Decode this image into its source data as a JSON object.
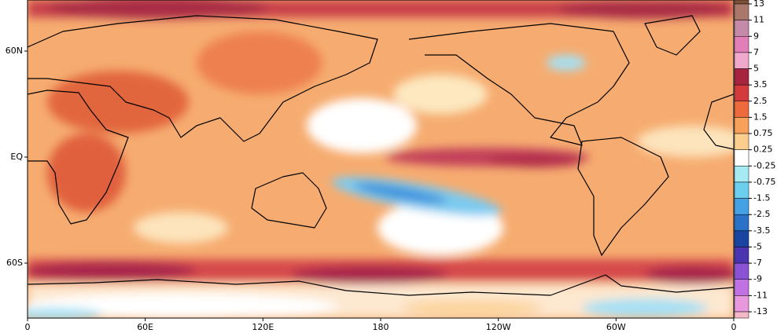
{
  "map": {
    "x_labels": [
      "0",
      "60E",
      "120E",
      "180",
      "120W",
      "60W",
      "0"
    ],
    "y_labels": [
      "60N",
      "EQ",
      "60S"
    ]
  },
  "colorbar": {
    "labels": [
      "13",
      "11",
      "9",
      "7",
      "5",
      "3.5",
      "2.5",
      "1.5",
      "0.75",
      "0.25",
      "-0.25",
      "-0.75",
      "-1.5",
      "-2.5",
      "-3.5",
      "-5",
      "-7",
      "-9",
      "-11",
      "-13"
    ],
    "colors": [
      "#7d5238",
      "#a9786a",
      "#c48aa8",
      "#e27fb8",
      "#f0a8cc",
      "#a6243e",
      "#d23a3c",
      "#ee6a3c",
      "#f6a05a",
      "#fcce8e",
      "#ffffff",
      "#a6eaf4",
      "#6ccfee",
      "#44a2e4",
      "#2a72c8",
      "#1a44a2",
      "#4a34b0",
      "#8a52d4",
      "#c072e2",
      "#e898dc",
      "#f4b8c8"
    ]
  }
}
